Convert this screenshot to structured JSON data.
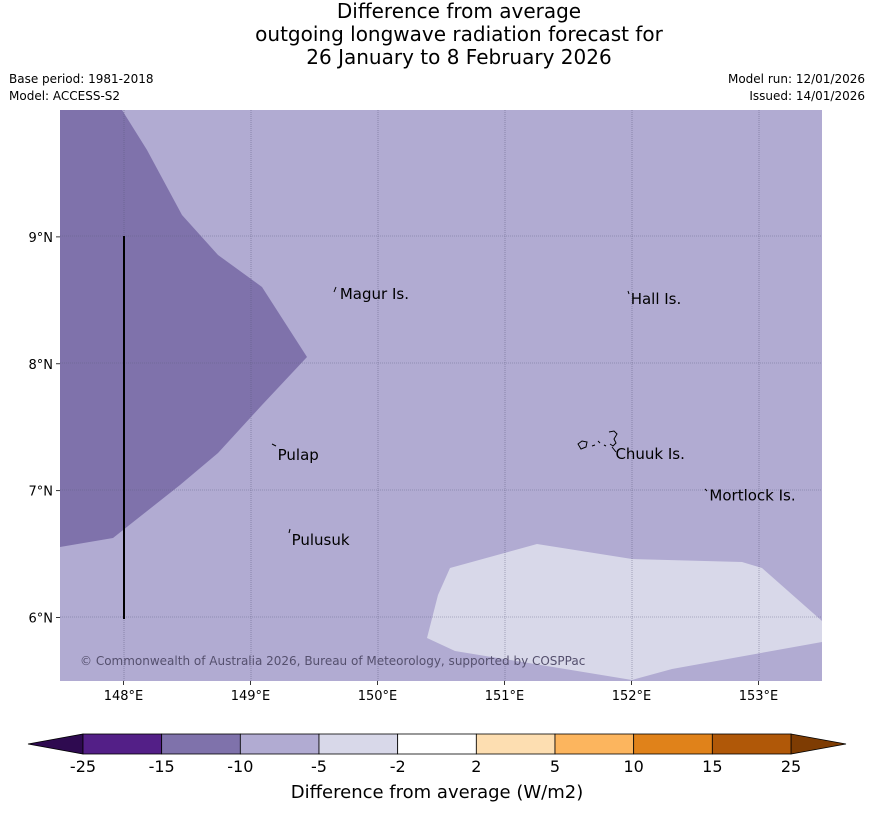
{
  "title": {
    "line1": "Difference from average",
    "line2": "outgoing longwave radiation forecast for",
    "line3": "26 January to 8 February 2026"
  },
  "meta": {
    "base_period": "Base period: 1981-2018",
    "model": "Model: ACCESS-S2",
    "model_run": "Model run: 12/01/2026",
    "issued": "Issued: 14/01/2026"
  },
  "map": {
    "lon_range": [
      147.5,
      153.5
    ],
    "lat_range": [
      5.5,
      10.0
    ],
    "lon_ticks": [
      {
        "value": 148,
        "label": "148°E"
      },
      {
        "value": 149,
        "label": "149°E"
      },
      {
        "value": 150,
        "label": "150°E"
      },
      {
        "value": 151,
        "label": "151°E"
      },
      {
        "value": 152,
        "label": "152°E"
      },
      {
        "value": 153,
        "label": "153°E"
      }
    ],
    "lat_ticks": [
      {
        "value": 9,
        "label": "9°N"
      },
      {
        "value": 8,
        "label": "8°N"
      },
      {
        "value": 7,
        "label": "7°N"
      },
      {
        "value": 6,
        "label": "6°N"
      }
    ],
    "places": [
      {
        "name": "Magur Is.",
        "lon": 149.68,
        "lat": 8.55
      },
      {
        "name": "Hall Is.",
        "lon": 151.97,
        "lat": 8.51
      },
      {
        "name": "Pulap",
        "lon": 149.19,
        "lat": 7.28
      },
      {
        "name": "Chuuk Is.",
        "lon": 151.85,
        "lat": 7.29
      },
      {
        "name": "Mortlock Is.",
        "lon": 152.59,
        "lat": 6.96
      },
      {
        "name": "Pulusuk",
        "lon": 149.3,
        "lat": 6.61
      }
    ],
    "copyright": "© Commonwealth of Australia 2026, Bureau of Meteorology, supported by COSPPac",
    "colors": {
      "background_bin": "#b1abd2",
      "strong_negative_bin": "#7f72ab",
      "weak_negative_bin": "#d8d8e9",
      "grid": "#5a5a7a"
    }
  },
  "colorbar": {
    "title": "Difference from average (W/m2)",
    "boundaries": [
      "-25",
      "-15",
      "-10",
      "-5",
      "-2",
      "2",
      "5",
      "10",
      "15",
      "25"
    ],
    "colors": [
      "#531f87",
      "#7f72ab",
      "#b1abd2",
      "#d8d8e9",
      "#ffffff",
      "#fddeb1",
      "#fcb55e",
      "#e0821a",
      "#b05808"
    ],
    "extend_low_color": "#2e0a50",
    "extend_high_color": "#7e3c03"
  }
}
